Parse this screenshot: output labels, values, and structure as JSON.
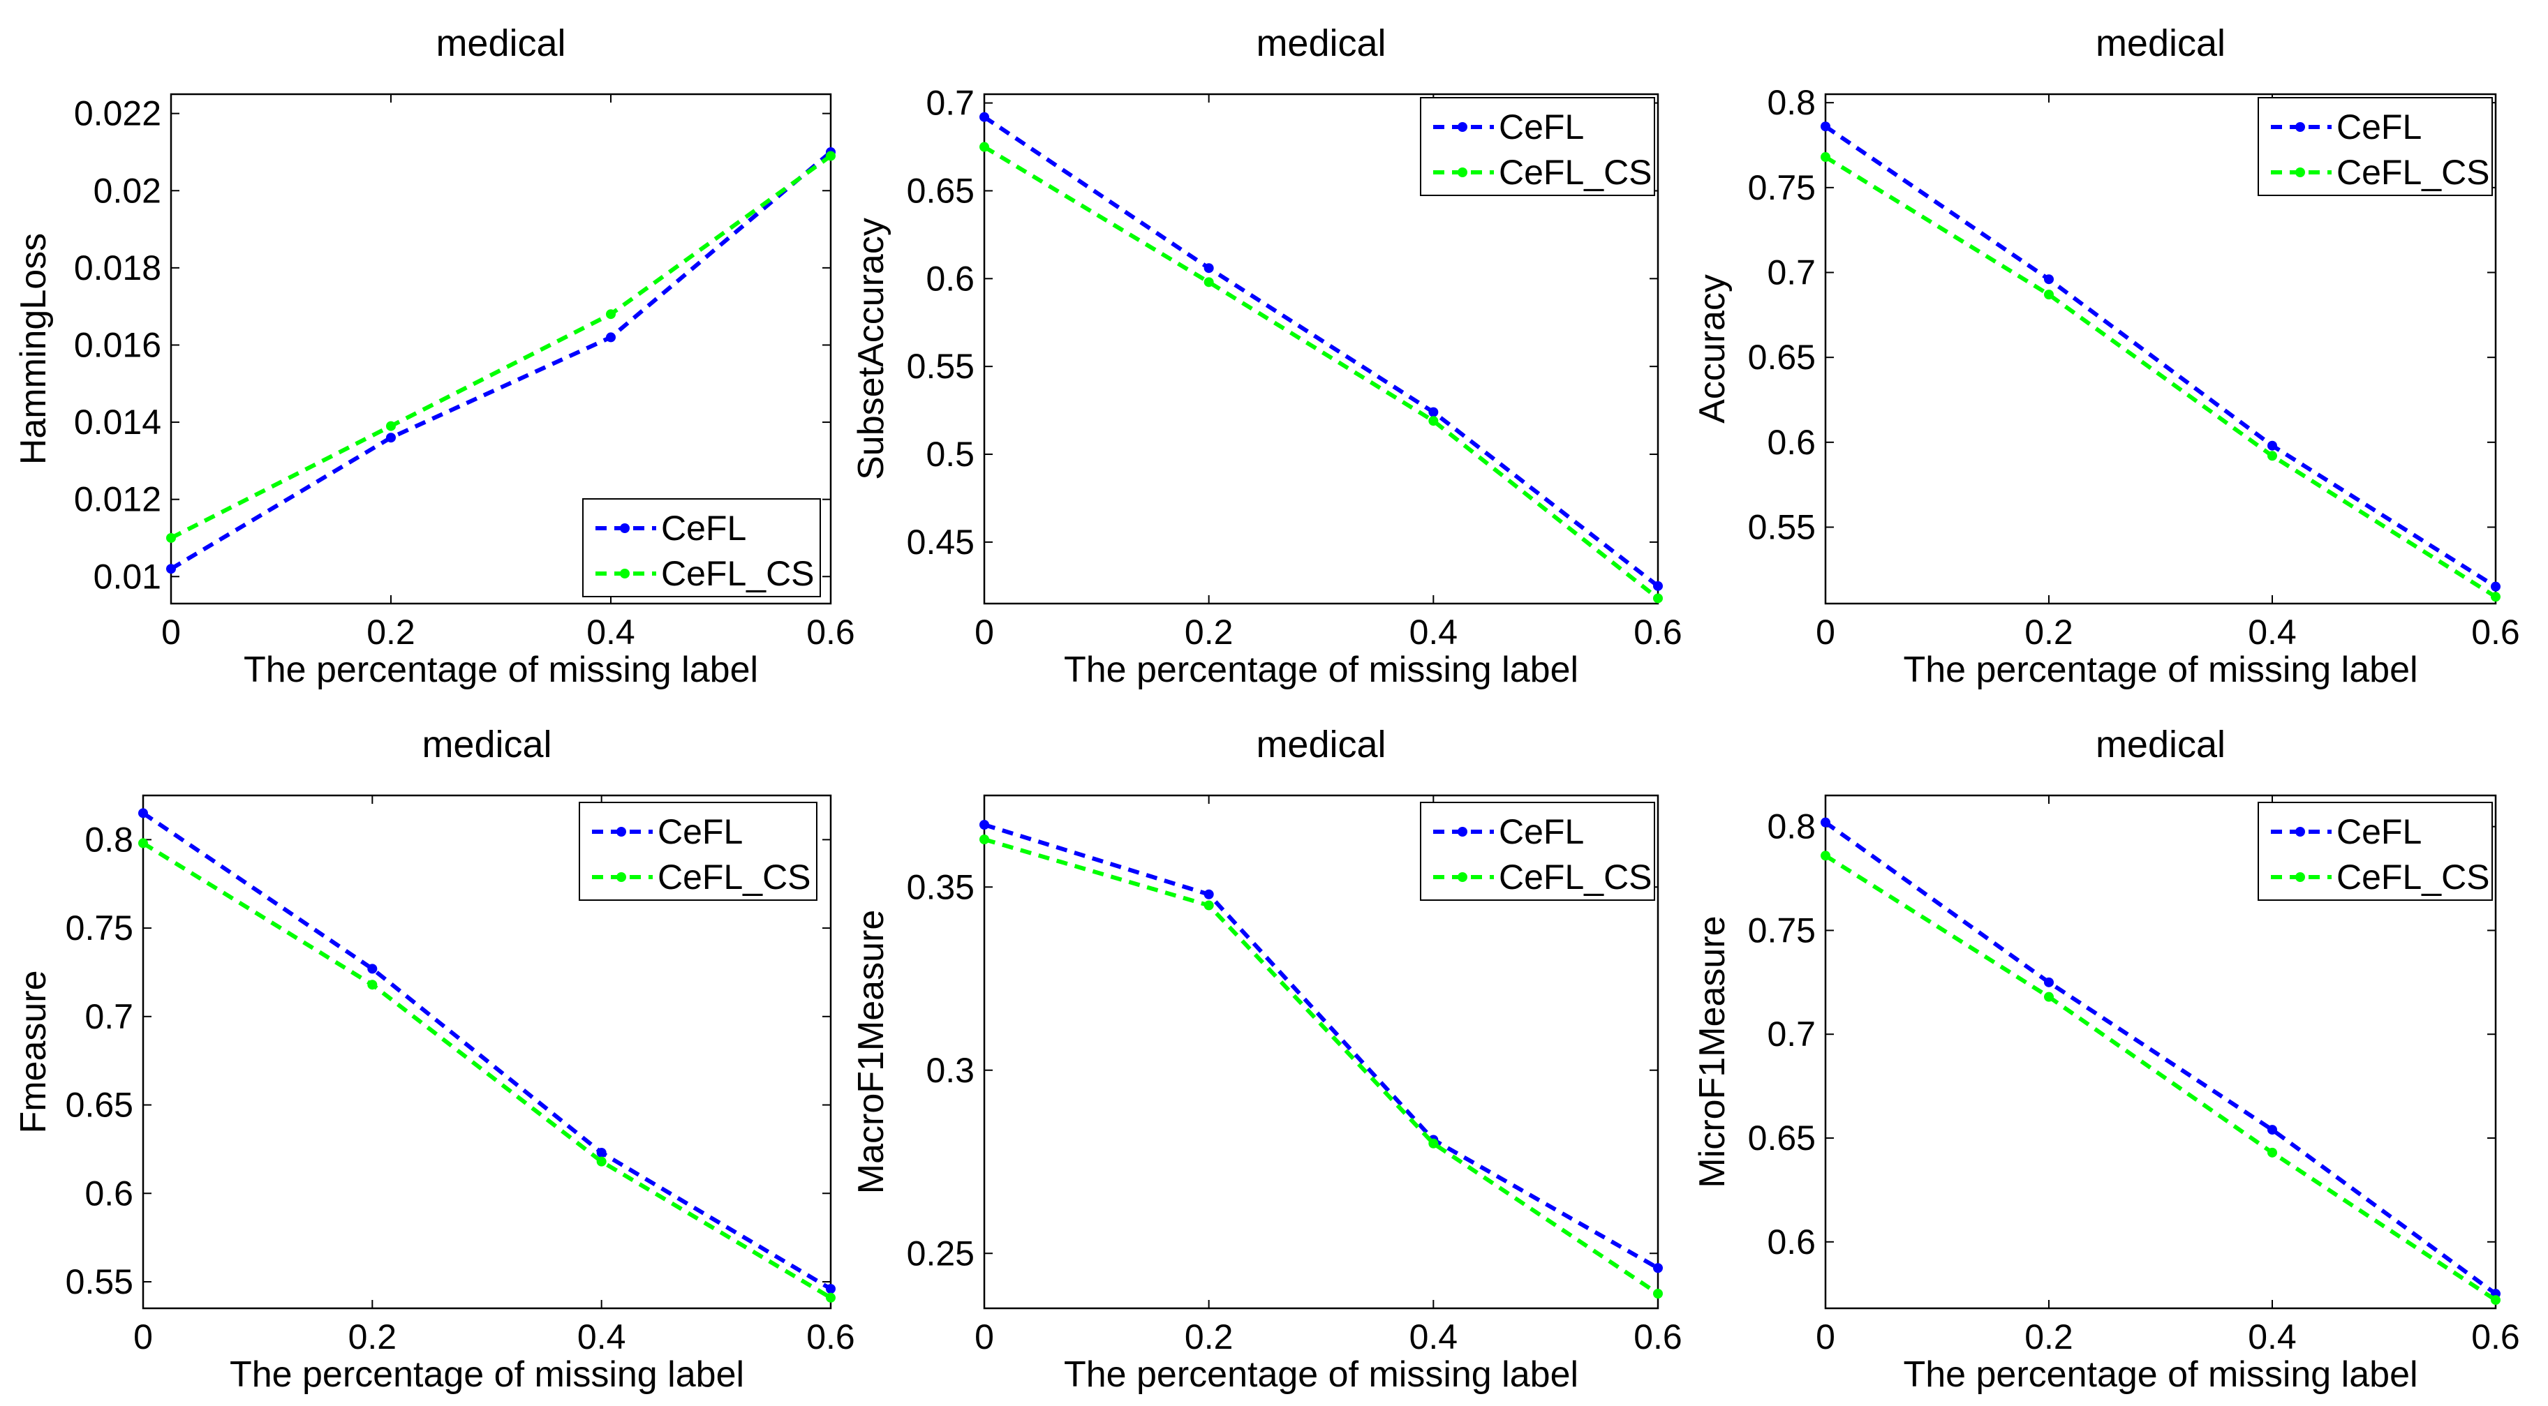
{
  "chart_data": [
    {
      "type": "line",
      "title": "medical",
      "xlabel": "The percentage of missing label",
      "ylabel": "HammingLoss",
      "x": [
        0,
        0.2,
        0.4,
        0.6
      ],
      "xlim": [
        0,
        0.6
      ],
      "ylim": [
        0.0093,
        0.0225
      ],
      "xticks": [
        "0",
        "0.2",
        "0.4",
        "0.6"
      ],
      "yticks": [
        0.01,
        0.012,
        0.014,
        0.016,
        0.018,
        0.02,
        0.022
      ],
      "ytick_labels": [
        "0.01",
        "0.012",
        "0.014",
        "0.016",
        "0.018",
        "0.02",
        "0.022"
      ],
      "legend_position": "bottom-right",
      "series": [
        {
          "name": "CeFL",
          "color": "#0000ff",
          "values": [
            0.0102,
            0.0136,
            0.0162,
            0.021
          ]
        },
        {
          "name": "CeFL_CS",
          "color": "#00ff00",
          "values": [
            0.011,
            0.0139,
            0.0168,
            0.0209
          ]
        }
      ]
    },
    {
      "type": "line",
      "title": "medical",
      "xlabel": "The percentage of missing label",
      "ylabel": "SubsetAccuracy",
      "x": [
        0,
        0.2,
        0.4,
        0.6
      ],
      "xlim": [
        0,
        0.6
      ],
      "ylim": [
        0.415,
        0.705
      ],
      "xticks": [
        "0",
        "0.2",
        "0.4",
        "0.6"
      ],
      "yticks": [
        0.45,
        0.5,
        0.55,
        0.6,
        0.65,
        0.7
      ],
      "ytick_labels": [
        "0.45",
        "0.5",
        "0.55",
        "0.6",
        "0.65",
        "0.7"
      ],
      "legend_position": "top-right",
      "series": [
        {
          "name": "CeFL",
          "color": "#0000ff",
          "values": [
            0.692,
            0.606,
            0.524,
            0.425
          ]
        },
        {
          "name": "CeFL_CS",
          "color": "#00ff00",
          "values": [
            0.675,
            0.598,
            0.519,
            0.418
          ]
        }
      ]
    },
    {
      "type": "line",
      "title": "medical",
      "xlabel": "The percentage of missing label",
      "ylabel": "Accuracy",
      "x": [
        0,
        0.2,
        0.4,
        0.6
      ],
      "xlim": [
        0,
        0.6
      ],
      "ylim": [
        0.505,
        0.805
      ],
      "xticks": [
        "0",
        "0.2",
        "0.4",
        "0.6"
      ],
      "yticks": [
        0.55,
        0.6,
        0.65,
        0.7,
        0.75,
        0.8
      ],
      "ytick_labels": [
        "0.55",
        "0.6",
        "0.65",
        "0.7",
        "0.75",
        "0.8"
      ],
      "legend_position": "top-right",
      "series": [
        {
          "name": "CeFL",
          "color": "#0000ff",
          "values": [
            0.786,
            0.696,
            0.598,
            0.515
          ]
        },
        {
          "name": "CeFL_CS",
          "color": "#00ff00",
          "values": [
            0.768,
            0.687,
            0.592,
            0.509
          ]
        }
      ]
    },
    {
      "type": "line",
      "title": "medical",
      "xlabel": "The percentage of missing label",
      "ylabel": "Fmeasure",
      "x": [
        0,
        0.2,
        0.4,
        0.6
      ],
      "xlim": [
        0,
        0.6
      ],
      "ylim": [
        0.535,
        0.825
      ],
      "xticks": [
        "0",
        "0.2",
        "0.4",
        "0.6"
      ],
      "yticks": [
        0.55,
        0.6,
        0.65,
        0.7,
        0.75,
        0.8
      ],
      "ytick_labels": [
        "0.55",
        "0.6",
        "0.65",
        "0.7",
        "0.75",
        "0.8"
      ],
      "legend_position": "top-right",
      "series": [
        {
          "name": "CeFL",
          "color": "#0000ff",
          "values": [
            0.815,
            0.727,
            0.623,
            0.546
          ]
        },
        {
          "name": "CeFL_CS",
          "color": "#00ff00",
          "values": [
            0.798,
            0.718,
            0.618,
            0.541
          ]
        }
      ]
    },
    {
      "type": "line",
      "title": "medical",
      "xlabel": "The percentage of missing label",
      "ylabel": "MacroF1Measure",
      "x": [
        0,
        0.2,
        0.4,
        0.6
      ],
      "xlim": [
        0,
        0.6
      ],
      "ylim": [
        0.235,
        0.375
      ],
      "xticks": [
        "0",
        "0.2",
        "0.4",
        "0.6"
      ],
      "yticks": [
        0.25,
        0.3,
        0.35
      ],
      "ytick_labels": [
        "0.25",
        "0.3",
        "0.35"
      ],
      "legend_position": "top-right",
      "series": [
        {
          "name": "CeFL",
          "color": "#0000ff",
          "values": [
            0.367,
            0.348,
            0.281,
            0.246
          ]
        },
        {
          "name": "CeFL_CS",
          "color": "#00ff00",
          "values": [
            0.363,
            0.345,
            0.28,
            0.239
          ]
        }
      ]
    },
    {
      "type": "line",
      "title": "medical",
      "xlabel": "The percentage of missing label",
      "ylabel": "MicroF1Measure",
      "x": [
        0,
        0.2,
        0.4,
        0.6
      ],
      "xlim": [
        0,
        0.6
      ],
      "ylim": [
        0.568,
        0.815
      ],
      "xticks": [
        "0",
        "0.2",
        "0.4",
        "0.6"
      ],
      "yticks": [
        0.6,
        0.65,
        0.7,
        0.75,
        0.8
      ],
      "ytick_labels": [
        "0.6",
        "0.65",
        "0.7",
        "0.75",
        "0.8"
      ],
      "legend_position": "top-right",
      "series": [
        {
          "name": "CeFL",
          "color": "#0000ff",
          "values": [
            0.802,
            0.725,
            0.654,
            0.575
          ]
        },
        {
          "name": "CeFL_CS",
          "color": "#00ff00",
          "values": [
            0.786,
            0.718,
            0.643,
            0.572
          ]
        }
      ]
    }
  ]
}
